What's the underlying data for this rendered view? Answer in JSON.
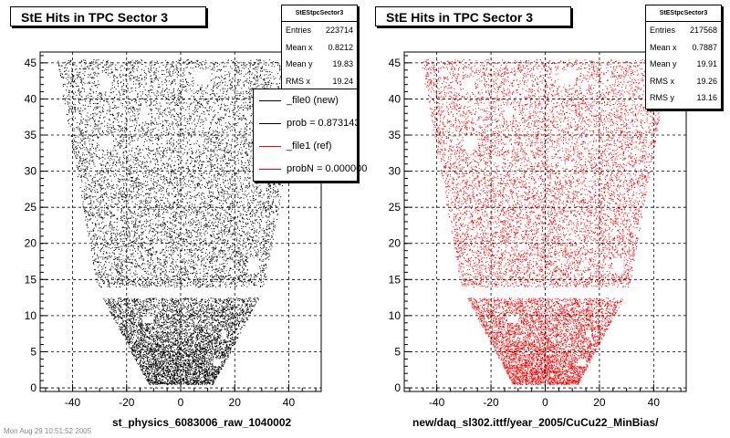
{
  "footer_stamp": "Mon Aug 29 10:51:52 2005",
  "panels": [
    {
      "title": "StE Hits in TPC Sector 3",
      "stats": {
        "name": "StEStpcSector3",
        "rows": [
          {
            "label": "Entries",
            "value": "223714"
          },
          {
            "label": "Mean x",
            "value": "0.8212"
          },
          {
            "label": "Mean y",
            "value": "19.83"
          },
          {
            "label": "RMS x",
            "value": "19.24"
          }
        ]
      },
      "legend": [
        {
          "label": "_file0 (new)",
          "color": "#000000"
        },
        {
          "label": "prob = 0.873143",
          "color": "#000000"
        },
        {
          "label": "_file1 (ref)",
          "color": "#ff0000"
        },
        {
          "label": "probN = 0.000000",
          "color": "#ff0000"
        }
      ],
      "x_axis_title": "st_physics_6083006_raw_1040002"
    },
    {
      "title": "StE Hits in TPC Sector 3",
      "stats": {
        "name": "StEStpcSector3",
        "rows": [
          {
            "label": "Entries",
            "value": "217568"
          },
          {
            "label": "Mean x",
            "value": "0.7887"
          },
          {
            "label": "Mean y",
            "value": "19.91"
          },
          {
            "label": "RMS x",
            "value": "19.26"
          },
          {
            "label": "RMS y",
            "value": "13.16"
          }
        ]
      },
      "x_axis_title": "new/daq_sl302.ittf/year_2005/CuCu22_MinBias/"
    }
  ],
  "chart_data": [
    {
      "type": "scatter",
      "title": "StE Hits in TPC Sector 3",
      "marker_color": "#000000",
      "xlim": [
        -52,
        52
      ],
      "ylim": [
        -0.5,
        46.5
      ],
      "x_ticks": [
        -40,
        -20,
        0,
        20,
        40
      ],
      "y_ticks": [
        0,
        5,
        10,
        15,
        20,
        25,
        30,
        35,
        40,
        45
      ],
      "grid": true,
      "outer_region": {
        "y_range": [
          14,
          45.5
        ],
        "x_half_width_bottom": 31,
        "x_half_width_top": 46
      },
      "inner_region": {
        "y_range": [
          0.5,
          12.5
        ],
        "x_half_width_bottom": 12,
        "x_half_width_top": 29
      },
      "gap_y": [
        12.5,
        14
      ]
    },
    {
      "type": "scatter",
      "title": "StE Hits in TPC Sector 3",
      "marker_color": "#ff0000",
      "xlim": [
        -52,
        52
      ],
      "ylim": [
        -0.5,
        46.5
      ],
      "x_ticks": [
        -40,
        -20,
        0,
        20,
        40
      ],
      "y_ticks": [
        0,
        5,
        10,
        15,
        20,
        25,
        30,
        35,
        40,
        45
      ],
      "grid": true,
      "outer_region": {
        "y_range": [
          14,
          45.5
        ],
        "x_half_width_bottom": 31,
        "x_half_width_top": 46
      },
      "inner_region": {
        "y_range": [
          0.5,
          12.5
        ],
        "x_half_width_bottom": 12,
        "x_half_width_top": 29
      },
      "gap_y": [
        12.5,
        14
      ]
    }
  ]
}
